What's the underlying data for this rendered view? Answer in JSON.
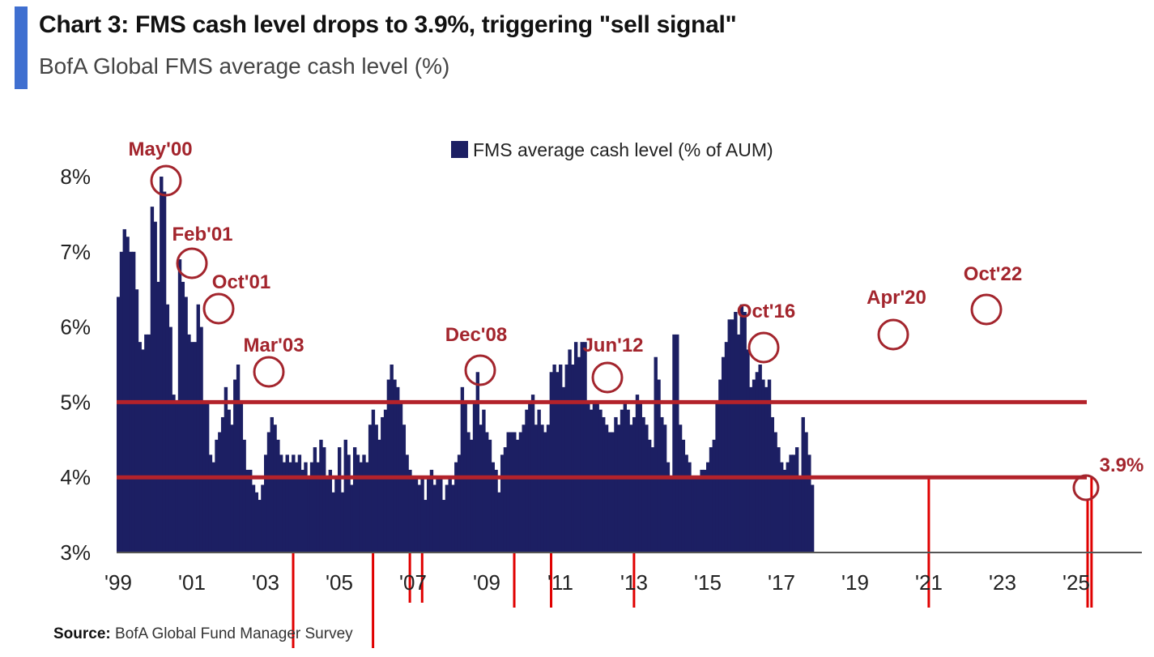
{
  "header": {
    "title": "Chart 3: FMS cash level drops to 3.9%, triggering \"sell signal\"",
    "subtitle": "BofA Global FMS average cash level (%)"
  },
  "source": {
    "label": "Source:",
    "text": "BofA Global Fund Manager Survey"
  },
  "colors": {
    "bar": "#1c1f63",
    "annotation": "#a3252d",
    "threshold_line": "#b3222a",
    "signal_line": "#e00000"
  },
  "chart_data": {
    "type": "bar",
    "title": "",
    "xlabel": "",
    "ylabel": "",
    "ylim": [
      3,
      8.4
    ],
    "yticks": [
      "3%",
      "4%",
      "5%",
      "6%",
      "7%",
      "8%"
    ],
    "xticks": [
      "'99",
      "'01",
      "'03",
      "'05",
      "'07",
      "'09",
      "'11",
      "'13",
      "'15",
      "'17",
      "'19",
      "'21",
      "'23",
      "'25"
    ],
    "legend": {
      "label": "FMS average cash level (% of AUM)",
      "position": "top-center"
    },
    "grid": false,
    "series": [
      {
        "name": "FMS average cash level (% of AUM)",
        "start": "1999-01",
        "frequency": "monthly",
        "values": [
          6.4,
          7.0,
          7.3,
          7.2,
          7.0,
          7.0,
          6.5,
          5.8,
          5.7,
          5.9,
          5.9,
          7.6,
          7.4,
          6.6,
          8.0,
          7.8,
          6.3,
          6.0,
          5.1,
          5.0,
          6.9,
          6.6,
          6.4,
          5.9,
          5.8,
          5.8,
          6.3,
          6.0,
          5.0,
          5.0,
          4.3,
          4.2,
          4.5,
          4.6,
          4.8,
          5.2,
          4.9,
          4.7,
          5.3,
          5.5,
          5.0,
          4.5,
          4.1,
          4.1,
          3.9,
          3.8,
          3.7,
          3.9,
          4.3,
          4.6,
          4.8,
          4.7,
          4.5,
          4.3,
          4.2,
          4.3,
          4.2,
          4.3,
          4.2,
          4.3,
          4.1,
          4.2,
          4.0,
          4.2,
          4.4,
          4.2,
          4.5,
          4.4,
          4.0,
          4.1,
          3.8,
          4.0,
          4.4,
          3.8,
          4.5,
          4.3,
          3.9,
          4.4,
          4.3,
          4.2,
          4.3,
          4.2,
          4.7,
          4.9,
          4.7,
          4.5,
          4.8,
          4.9,
          5.3,
          5.5,
          5.3,
          5.2,
          5.0,
          4.7,
          4.3,
          4.1,
          4.0,
          4.0,
          3.9,
          4.0,
          3.7,
          4.0,
          4.1,
          3.9,
          4.0,
          4.0,
          3.7,
          3.9,
          4.0,
          3.9,
          4.2,
          4.3,
          5.2,
          5.0,
          4.6,
          4.5,
          5.0,
          5.4,
          4.7,
          4.9,
          4.6,
          4.5,
          4.2,
          4.1,
          3.8,
          4.3,
          4.4,
          4.6,
          4.6,
          4.6,
          4.5,
          4.6,
          4.7,
          4.9,
          5.0,
          5.1,
          4.7,
          4.9,
          4.7,
          4.6,
          4.7,
          5.4,
          5.5,
          5.4,
          5.5,
          5.2,
          5.5,
          5.7,
          5.5,
          5.8,
          5.6,
          5.8,
          5.8,
          5.0,
          4.9,
          5.0,
          5.0,
          4.9,
          4.8,
          4.7,
          4.6,
          4.6,
          4.8,
          4.7,
          4.9,
          5.0,
          4.9,
          4.7,
          4.8,
          5.1,
          5.0,
          4.8,
          4.7,
          4.5,
          4.4,
          5.6,
          5.3,
          4.8,
          4.7,
          4.2,
          4.0,
          5.9,
          5.9,
          4.7,
          4.5,
          4.3,
          4.2,
          4.0,
          4.0,
          4.0,
          4.1,
          4.1,
          4.2,
          4.4,
          4.5,
          5.0,
          5.3,
          5.6,
          5.8,
          6.1,
          6.1,
          6.2,
          5.9,
          6.3,
          6.2,
          5.7,
          5.2,
          5.3,
          5.4,
          5.5,
          5.3,
          5.2,
          5.3,
          4.8,
          4.6,
          4.4,
          4.2,
          4.1,
          4.2,
          4.3,
          4.3,
          4.4,
          4.0,
          4.8,
          4.6,
          4.3,
          3.9
        ]
      }
    ],
    "reference_lines": [
      5.0,
      4.0
    ],
    "annotations": [
      {
        "label": "May'00",
        "value": 8.0
      },
      {
        "label": "Feb'01",
        "value": 6.9
      },
      {
        "label": "Oct'01",
        "value": 6.3
      },
      {
        "label": "Mar'03",
        "value": 5.5
      },
      {
        "label": "Dec'08",
        "value": 5.5
      },
      {
        "label": "Jun'12",
        "value": 5.4
      },
      {
        "label": "Oct'16",
        "value": 5.8
      },
      {
        "label": "Apr'20",
        "value": 5.9
      },
      {
        "label": "Oct'22",
        "value": 6.3
      },
      {
        "label": "3.9%",
        "value": 3.9
      }
    ]
  }
}
